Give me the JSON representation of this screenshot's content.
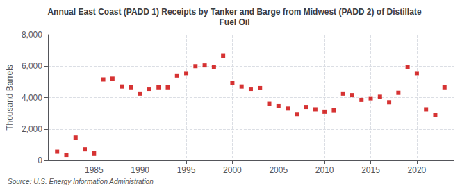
{
  "chart_data": {
    "type": "scatter",
    "title": "Annual East Coast (PADD 1) Receipts by Tanker and Barge from Midwest (PADD 2) of Distillate\nFuel Oil",
    "ylabel": "Thousand Barrels",
    "source": "Source: U.S. Energy Information Administration",
    "x": [
      1981,
      1982,
      1983,
      1984,
      1985,
      1986,
      1987,
      1988,
      1989,
      1990,
      1991,
      1992,
      1993,
      1994,
      1995,
      1996,
      1997,
      1998,
      1999,
      2000,
      2001,
      2002,
      2003,
      2004,
      2005,
      2006,
      2007,
      2008,
      2009,
      2010,
      2011,
      2012,
      2013,
      2014,
      2015,
      2016,
      2017,
      2018,
      2019,
      2020,
      2021,
      2022,
      2023
    ],
    "values": [
      550,
      350,
      1450,
      700,
      450,
      5150,
      5200,
      4700,
      4650,
      4250,
      4550,
      4650,
      4650,
      5400,
      5550,
      6000,
      6050,
      5950,
      6650,
      4950,
      4700,
      4550,
      4600,
      3600,
      3450,
      3300,
      2950,
      3400,
      3250,
      3100,
      3200,
      4250,
      4150,
      3850,
      3950,
      4050,
      3700,
      4300,
      5950,
      5550,
      3250,
      2900,
      4650
    ],
    "color": "#cc0000",
    "marker": "square",
    "xlim": [
      1980,
      2024
    ],
    "xticks": [
      1985,
      1990,
      1995,
      2000,
      2005,
      2010,
      2015,
      2020
    ],
    "ylim": [
      0,
      8000
    ],
    "yticks": [
      0,
      {
        "value": 2000,
        "label": "2,000"
      },
      {
        "value": 4000,
        "label": "4,000"
      },
      {
        "value": 6000,
        "label": "6,000"
      },
      {
        "value": 8000,
        "label": "8,000"
      }
    ],
    "grid": true
  }
}
